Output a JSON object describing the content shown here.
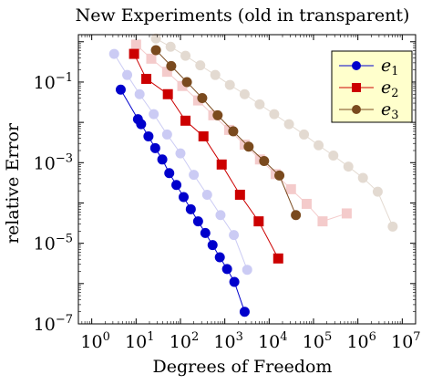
{
  "chart_data": {
    "type": "line",
    "title": "New Experiments (old in transparent)",
    "xlabel": "Degrees of Freedom",
    "ylabel": "relative Error",
    "xscale": "log",
    "yscale": "log",
    "xlim": [
      0.5,
      20000000
    ],
    "ylim": [
      1e-07,
      1.5
    ],
    "xticks": [
      {
        "base": "10",
        "exp": "0"
      },
      {
        "base": "10",
        "exp": "1"
      },
      {
        "base": "10",
        "exp": "2"
      },
      {
        "base": "10",
        "exp": "3"
      },
      {
        "base": "10",
        "exp": "4"
      },
      {
        "base": "10",
        "exp": "5"
      },
      {
        "base": "10",
        "exp": "6"
      },
      {
        "base": "10",
        "exp": "7"
      }
    ],
    "yticks": [
      {
        "base": "10",
        "exp": "−7"
      },
      {
        "base": "10",
        "exp": "−5"
      },
      {
        "base": "10",
        "exp": "−3"
      },
      {
        "base": "10",
        "exp": "−1"
      }
    ],
    "grid": false,
    "legend_position": "top-right",
    "series": [
      {
        "name": "e",
        "sub": "1",
        "color": "#0000cc",
        "marker": "circle",
        "opacity": 1,
        "x": [
          4.5,
          11,
          13,
          19,
          27,
          39,
          56,
          81,
          118,
          171,
          250,
          364,
          530,
          772,
          1125,
          1640,
          2800
        ],
        "y": [
          0.065,
          0.012,
          0.009,
          0.0045,
          0.0023,
          0.0012,
          0.00055,
          0.00028,
          0.00014,
          7e-05,
          3.5e-05,
          1.8e-05,
          9e-06,
          4.5e-06,
          2.3e-06,
          1.1e-06,
          2e-07
        ]
      },
      {
        "name": "e",
        "sub": "2",
        "color": "#cc0000",
        "marker": "square",
        "opacity": 1,
        "x": [
          9,
          17,
          52,
          130,
          330,
          850,
          2200,
          5800,
          16000
        ],
        "y": [
          0.5,
          0.12,
          0.05,
          0.011,
          0.0045,
          0.0009,
          0.00016,
          3.5e-05,
          4.2e-06
        ]
      },
      {
        "name": "e",
        "sub": "3",
        "color": "#7a4a1e",
        "marker": "circle",
        "opacity": 1,
        "x": [
          28,
          62,
          140,
          310,
          690,
          1550,
          3450,
          7700,
          17000,
          40000
        ],
        "y": [
          0.62,
          0.25,
          0.1,
          0.04,
          0.015,
          0.006,
          0.0025,
          0.0011,
          0.00048,
          5e-05
        ]
      },
      {
        "name": "",
        "sub": "",
        "color": "#0000cc",
        "marker": "circle",
        "opacity": 0.2,
        "x": [
          3.2,
          6.3,
          12,
          25,
          50,
          100,
          200,
          400,
          800,
          1600,
          3200
        ],
        "y": [
          0.5,
          0.15,
          0.05,
          0.016,
          0.005,
          0.0017,
          0.0005,
          0.00016,
          5e-05,
          1.6e-05,
          2.2e-06
        ]
      },
      {
        "name": "",
        "sub": "",
        "color": "#cc0000",
        "marker": "square",
        "opacity": 0.2,
        "x": [
          10,
          22,
          50,
          110,
          250,
          550,
          1250,
          2800,
          6200,
          14000,
          31000,
          70000,
          160000,
          560000
        ],
        "y": [
          0.85,
          0.38,
          0.18,
          0.08,
          0.035,
          0.015,
          0.0065,
          0.0028,
          0.0012,
          0.00052,
          0.00022,
          9.5e-05,
          3.5e-05,
          5.5e-05
        ]
      },
      {
        "name": "",
        "sub": "",
        "color": "#7a4a1e",
        "marker": "circle",
        "opacity": 0.2,
        "x": [
          28,
          60,
          130,
          280,
          610,
          1300,
          2800,
          6100,
          13000,
          28000,
          61000,
          130000,
          280000,
          610000,
          1300000,
          2800000,
          6100000
        ],
        "y": [
          1.2,
          0.75,
          0.45,
          0.26,
          0.15,
          0.085,
          0.05,
          0.028,
          0.016,
          0.009,
          0.005,
          0.0027,
          0.0015,
          0.0008,
          0.00042,
          0.00019,
          2.6e-05
        ]
      }
    ]
  }
}
